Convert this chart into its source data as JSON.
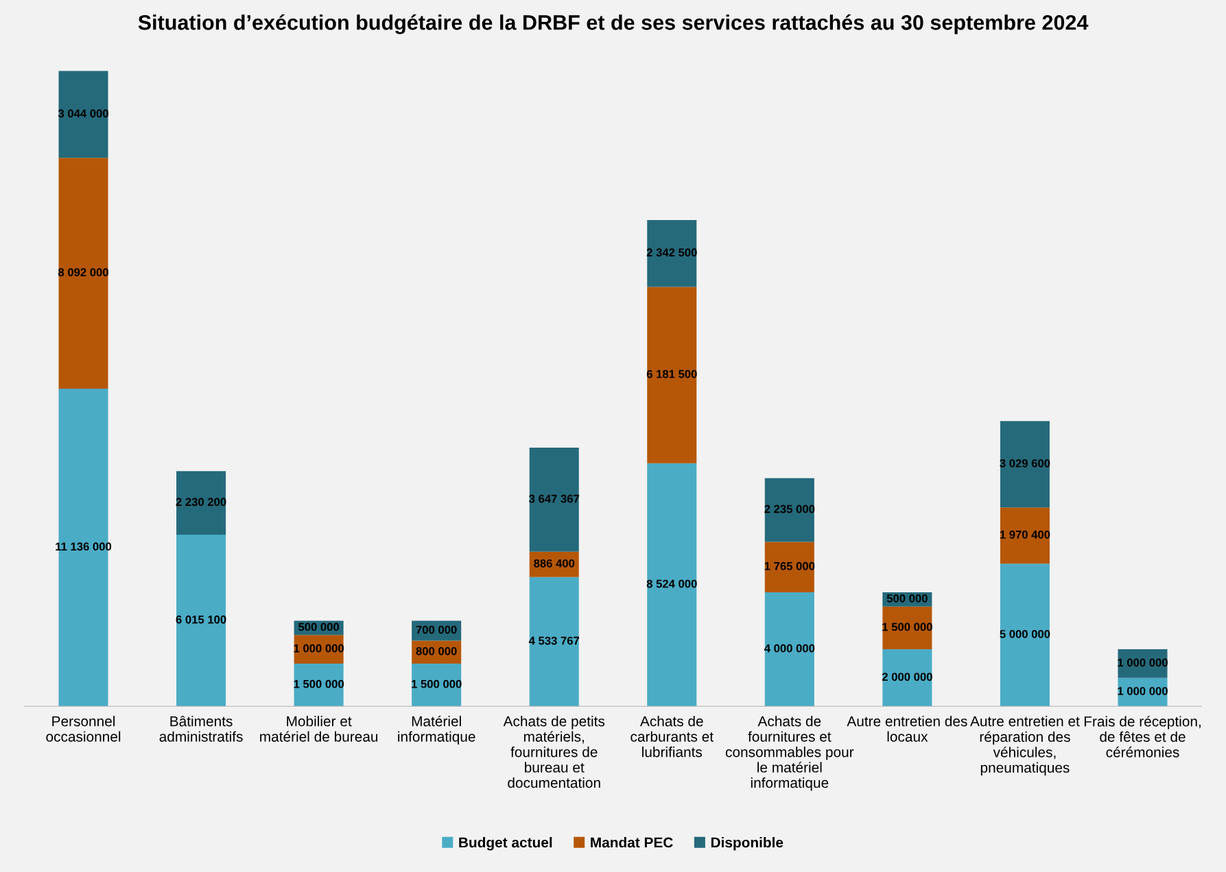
{
  "chart_data": {
    "type": "bar",
    "stacked": true,
    "title": "Situation d’exécution budgétaire de la DRBF et de ses services rattachés au 30 septembre 2024",
    "categories": [
      "Personnel occasionnel",
      "Bâtiments administratifs",
      "Mobilier et matériel de bureau",
      "Matériel informatique",
      "Achats de petits matériels, fournitures de bureau et documentation",
      "Achats de carburants et lubrifiants",
      "Achats de fournitures et consommables pour le matériel informatique",
      "Autre entretien des locaux",
      "Autre entretien et réparation des véhicules, pneumatiques",
      "Frais de réception, de fêtes et de cérémonies"
    ],
    "series": [
      {
        "name": "Budget actuel",
        "color": "#4bacc6",
        "values": [
          11136000,
          6015100,
          1500000,
          1500000,
          4533767,
          8524000,
          4000000,
          2000000,
          5000000,
          1000000
        ]
      },
      {
        "name": "Mandat PEC",
        "color": "#b65708",
        "values": [
          8092000,
          null,
          1000000,
          800000,
          886400,
          6181500,
          1765000,
          1500000,
          1970400,
          null
        ]
      },
      {
        "name": "Disponible",
        "color": "#256a7b",
        "values": [
          3044000,
          2230200,
          500000,
          700000,
          3647367,
          2342500,
          2235000,
          500000,
          3029600,
          1000000
        ]
      }
    ],
    "data_labels": true,
    "legend": "bottom",
    "grid": false
  }
}
